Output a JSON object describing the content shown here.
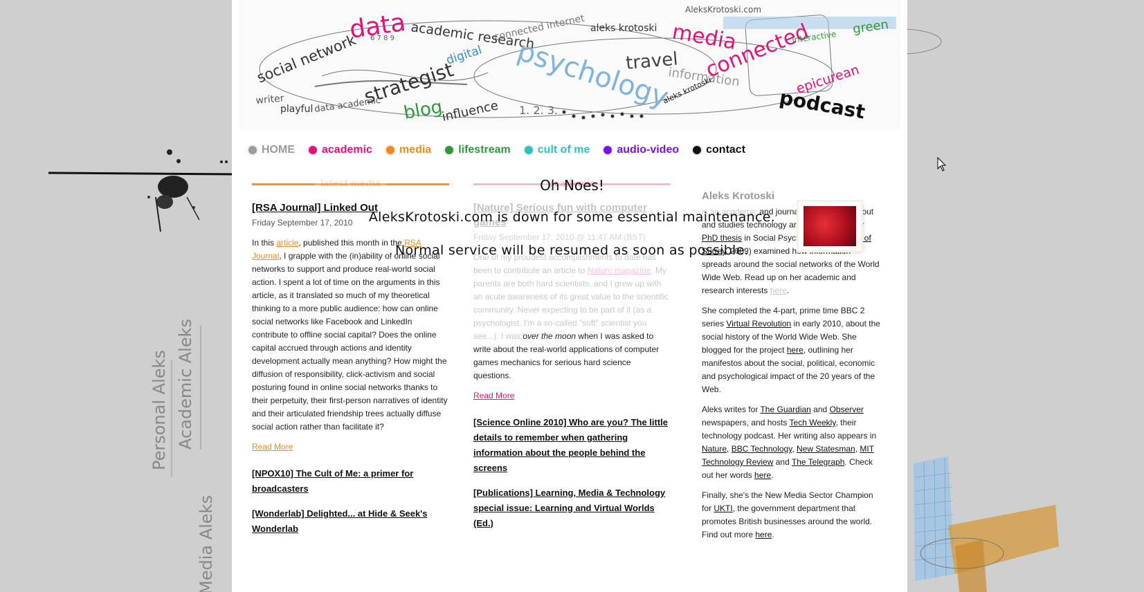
{
  "banner": {
    "words": [
      "data",
      "academic research",
      "social network",
      "aleks krotoski",
      "travel",
      "media",
      "green",
      "strategist",
      "digital",
      "blog",
      "connected internet",
      "psychology",
      "information",
      "connected",
      "interactive",
      "writer",
      "playful",
      "data academic",
      "influence",
      "epicurean",
      "podcast",
      "aleks krotoski",
      "AleksKrotoski.com",
      "6 7 8 9",
      "1. 2. 3."
    ]
  },
  "nav": {
    "items": [
      {
        "label": "HOME",
        "color": "#9a9a9a"
      },
      {
        "label": "academic",
        "color": "#e2117b"
      },
      {
        "label": "media",
        "color": "#f08a1d"
      },
      {
        "label": "lifestream",
        "color": "#2e9a3a"
      },
      {
        "label": "cult of me",
        "color": "#2fc0c5"
      },
      {
        "label": "audio-video",
        "color": "#7a12e6"
      },
      {
        "label": "contact",
        "color": "#111111"
      }
    ]
  },
  "media": {
    "heading": "latest media",
    "accent": "#f08a1d",
    "post_title": "[RSA Journal] Linked Out",
    "post_date": "Friday September 17, 2010",
    "body_a": "In this ",
    "link_article": "article",
    "body_b": ", published this month in the ",
    "link_rsa": "RSA Journal",
    "body_c": ", I grapple with the (in)ability of online social networks to support and produce real-world social action. I spent a lot of time on the arguments in this article, as it translated so much of my theoretical thinking to a more public audience: how can online social networks like Facebook and LinkedIn contribute to offline social capital? Does the online capital accrued through actions and identity development actually mean anything? How might the diffusion of responsibility, click-activism and social posturing found in online social networks thanks to their perpetuity, their first-person narratives of identity and their articulated friendship trees actually diffuse social action rather than facilitate it?",
    "read_more": "Read More",
    "more_posts": [
      "[NPOX10] The Cult of Me: a primer for broadcasters",
      "[Wonderlab] Delighted... at Hide & Seek's Wonderlab"
    ]
  },
  "academic": {
    "heading": "academic",
    "accent": "#e2117b",
    "post_title": "[Nature] Serious fun with computer games",
    "post_date": "Friday September 17, 2010 @ 11:47 AM (BST)",
    "body_a": "One of my proudest accomplishments to date has been to contribute an article to ",
    "link_nature": "Nature magazine",
    "body_b": ". My parents are both hard scientists, and I grew up with an acute awareness of its great value to the scientific community. Never expecting to be part of it (as a psychologist, I'm a so-called \"soft\" scientist you see...). I was ",
    "body_em": "over the moon",
    "body_c": " when I was asked to write about the real-world applications of computer games mechanics for serious hard science questions.",
    "read_more": "Read More",
    "more_posts": [
      "[Science Online 2010] Who are you? The little details to remember when gathering information about the people behind the screens",
      "[Publications] Learning, Media & Technology special issue: Learning and Virtual Worlds (Ed.)"
    ]
  },
  "about": {
    "name": "Aleks Krotoski",
    "p1_a": "is an ",
    "p1_l1": "academic",
    "p1_b": " and journalist who writes about and studies technology and interactivity. Her ",
    "p1_l2": "PhD thesis",
    "p1_c": " in Social Psychology (",
    "p1_l3": "University of Surrey",
    "p1_d": ", 2009) examined how information spreads around the social networks of the World Wide Web. Read up on her academic and research interests ",
    "p1_l4": "here",
    "p1_e": ".",
    "p2_a": "She completed the 4-part, prime time BBC 2 series ",
    "p2_l1": "Virtual Revolution",
    "p2_b": " in early 2010, about the social history of the World Wide Web. She blogged for the project ",
    "p2_l2": "here",
    "p2_c": ", outlining her manifestos about the social, political, economic and psychological impact of the 20 years of the Web.",
    "p3_a": "Aleks writes for ",
    "p3_l1": "The Guardian",
    "p3_b": " and ",
    "p3_l2": "Observer",
    "p3_c": " newspapers, and hosts ",
    "p3_l3": "Tech Weekly",
    "p3_d": ", their technology podcast. Her writing also appears in ",
    "p3_l4": "Nature",
    "p3_e": ", ",
    "p3_l5": "BBC Technology",
    "p3_f": ", ",
    "p3_l6": "New Statesman",
    "p3_g": ", ",
    "p3_l7": "MIT Technology Review",
    "p3_h": " and ",
    "p3_l8": "The Telegraph",
    "p3_i": ". Check out her words ",
    "p3_l9": "here",
    "p3_j": ".",
    "p4_a": "Finally, she's the New Media Sector Champion for ",
    "p4_l1": "UKTI",
    "p4_b": ", the government department that promotes British businesses around the world. Find out more ",
    "p4_l2": "here",
    "p4_c": "."
  },
  "side_labels": [
    "Personal Aleks",
    "Academic Aleks",
    "Media Aleks"
  ],
  "overlay": {
    "title": "Oh Noes!",
    "message_1": "AleksKrotoski.com is down for some essential maintenance.",
    "message_2": "Normal service will be resumed as soon as possible."
  }
}
